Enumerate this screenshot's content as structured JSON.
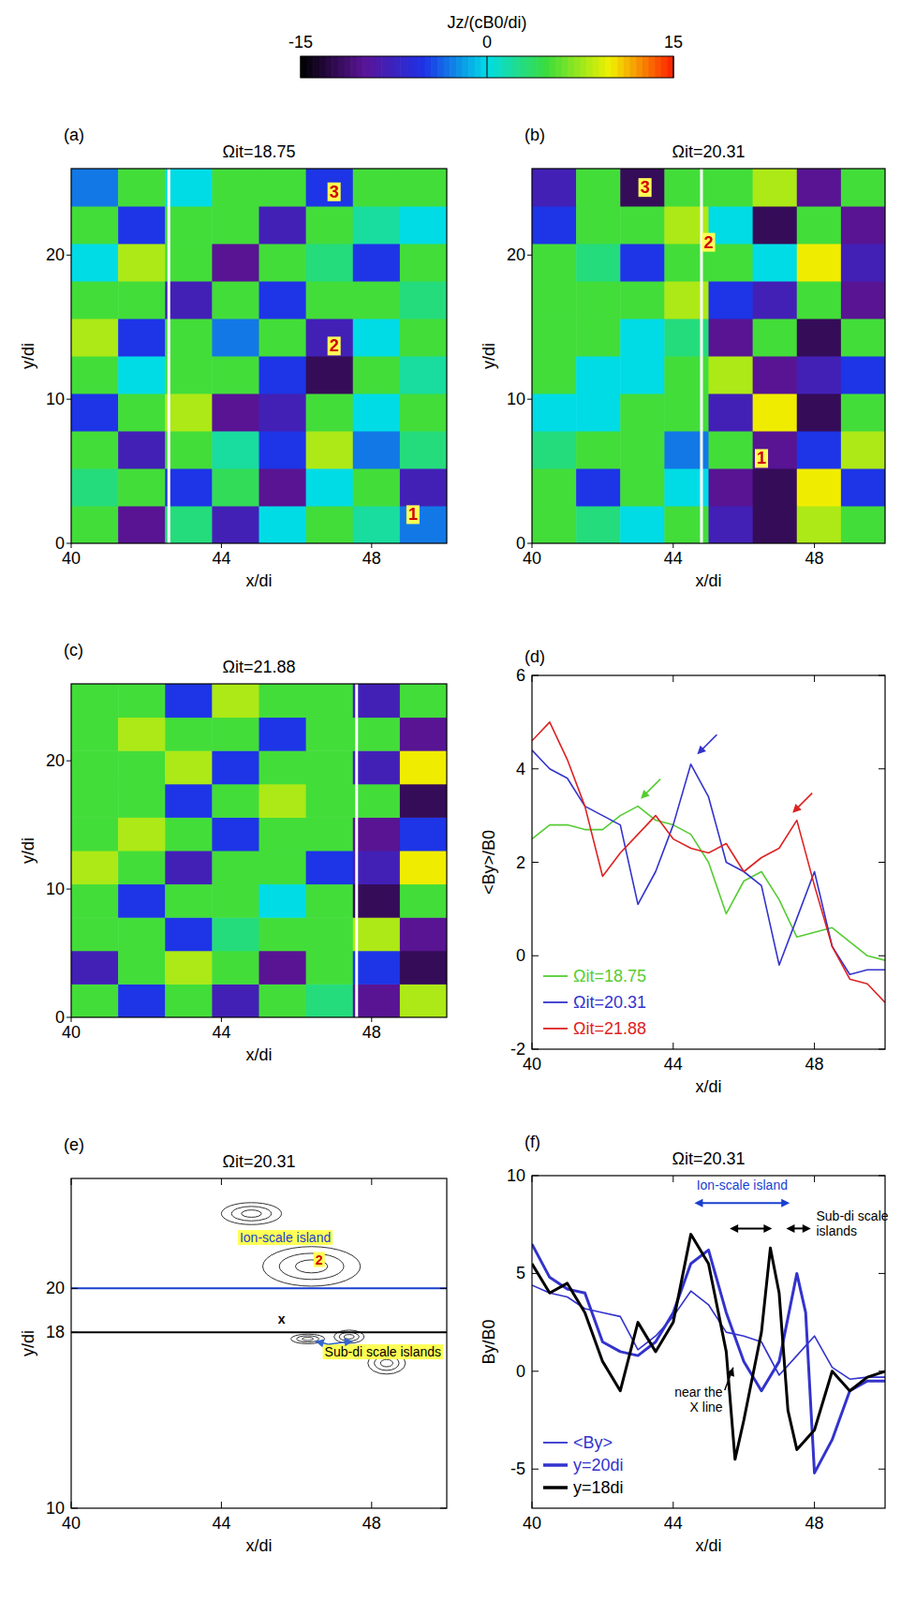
{
  "chart_data": [
    {
      "type": "heatmap",
      "panel_label": "(a)",
      "title": "Ωit=18.75",
      "xlabel": "x/di",
      "ylabel": "y/di",
      "xlim": [
        40,
        50
      ],
      "ylim": [
        0,
        26
      ],
      "xticks": [
        40,
        44,
        48
      ],
      "yticks": [
        0,
        10,
        20
      ],
      "colorbar": {
        "title": "Jz/(cB0/di)",
        "range": [
          -15,
          15
        ],
        "ticks": [
          -15,
          0,
          15
        ]
      },
      "line_x": 42.6,
      "x": [
        40.625,
        41.875,
        43.125,
        44.375,
        45.625,
        46.875,
        48.125,
        49.375
      ],
      "y": [
        1.3,
        3.9,
        6.5,
        9.1,
        11.7,
        14.3,
        16.9,
        19.5,
        22.1,
        24.7
      ],
      "values": [
        [
          5,
          -10,
          3,
          -8,
          0,
          5,
          2,
          -3
        ],
        [
          3,
          5,
          -5,
          4,
          -10,
          0,
          5,
          -8
        ],
        [
          5,
          -8,
          5,
          2,
          -5,
          8,
          -3,
          3
        ],
        [
          -5,
          5,
          8,
          -10,
          -8,
          5,
          0,
          5
        ],
        [
          5,
          0,
          5,
          5,
          -5,
          -12,
          5,
          2
        ],
        [
          8,
          -5,
          5,
          -3,
          5,
          -8,
          0,
          5
        ],
        [
          5,
          5,
          -8,
          5,
          -5,
          5,
          5,
          3
        ],
        [
          0,
          8,
          5,
          -10,
          5,
          3,
          -5,
          5
        ],
        [
          5,
          -5,
          5,
          5,
          -8,
          5,
          2,
          0
        ],
        [
          -3,
          5,
          0,
          5,
          5,
          -5,
          5,
          5
        ]
      ],
      "annotations": [
        {
          "text": "3",
          "x": 47,
          "y": 24,
          "color": "#d00000",
          "background": "#ffff55"
        },
        {
          "text": "2",
          "x": 47,
          "y": 13.3,
          "color": "#d00000",
          "background": "#ffff55"
        },
        {
          "text": "1",
          "x": 49.1,
          "y": 1.6,
          "color": "#d00000",
          "background": "#ffff55"
        }
      ]
    },
    {
      "type": "heatmap",
      "panel_label": "(b)",
      "title": "Ωit=20.31",
      "xlabel": "x/di",
      "ylabel": "y/di",
      "xlim": [
        40,
        50
      ],
      "ylim": [
        0,
        26
      ],
      "xticks": [
        40,
        44,
        48
      ],
      "yticks": [
        0,
        10,
        20
      ],
      "line_x": 44.8,
      "x": [
        40.625,
        41.875,
        43.125,
        44.375,
        45.625,
        46.875,
        48.125,
        49.375
      ],
      "y": [
        1.3,
        3.9,
        6.5,
        9.1,
        11.7,
        14.3,
        16.9,
        19.5,
        22.1,
        24.7
      ],
      "values": [
        [
          5,
          3,
          0,
          5,
          -8,
          -12,
          8,
          5
        ],
        [
          5,
          -5,
          5,
          0,
          -10,
          -12,
          10,
          -5
        ],
        [
          3,
          5,
          5,
          -3,
          5,
          -10,
          -5,
          8
        ],
        [
          0,
          0,
          5,
          5,
          -8,
          10,
          -12,
          5
        ],
        [
          5,
          0,
          0,
          5,
          8,
          -10,
          -8,
          -5
        ],
        [
          5,
          5,
          0,
          3,
          -10,
          5,
          -12,
          5
        ],
        [
          5,
          5,
          5,
          8,
          -5,
          -8,
          5,
          -10
        ],
        [
          5,
          3,
          -5,
          5,
          5,
          0,
          10,
          -8
        ],
        [
          -5,
          5,
          5,
          8,
          0,
          -12,
          5,
          -10
        ],
        [
          -8,
          5,
          -12,
          5,
          5,
          8,
          -10,
          5
        ]
      ],
      "annotations": [
        {
          "text": "3",
          "x": 43.2,
          "y": 24.3,
          "color": "#d00000",
          "background": "#ffff55"
        },
        {
          "text": "2",
          "x": 45,
          "y": 20.5,
          "color": "#d00000",
          "background": "#ffff55"
        },
        {
          "text": "1",
          "x": 46.5,
          "y": 5.5,
          "color": "#d00000",
          "background": "#ffff55"
        }
      ]
    },
    {
      "type": "heatmap",
      "panel_label": "(c)",
      "title": "Ωit=21.88",
      "xlabel": "x/di",
      "ylabel": "y/di",
      "xlim": [
        40,
        50
      ],
      "ylim": [
        0,
        26
      ],
      "xticks": [
        40,
        44,
        48
      ],
      "yticks": [
        0,
        10,
        20
      ],
      "line_x": 47.6,
      "x": [
        40.625,
        41.875,
        43.125,
        44.375,
        45.625,
        46.875,
        48.125,
        49.375
      ],
      "y": [
        1.3,
        3.9,
        6.5,
        9.1,
        11.7,
        14.3,
        16.9,
        19.5,
        22.1,
        24.7
      ],
      "values": [
        [
          5,
          -5,
          5,
          -8,
          5,
          3,
          -10,
          8
        ],
        [
          -8,
          5,
          8,
          5,
          -10,
          5,
          -5,
          -12
        ],
        [
          5,
          5,
          -5,
          3,
          5,
          5,
          8,
          -10
        ],
        [
          5,
          -5,
          5,
          5,
          0,
          5,
          -12,
          5
        ],
        [
          8,
          5,
          -8,
          5,
          5,
          -5,
          -8,
          10
        ],
        [
          5,
          8,
          5,
          -5,
          5,
          5,
          -10,
          -5
        ],
        [
          5,
          5,
          -5,
          5,
          8,
          5,
          5,
          -12
        ],
        [
          5,
          5,
          8,
          -5,
          5,
          5,
          -8,
          10
        ],
        [
          5,
          8,
          5,
          5,
          -5,
          5,
          5,
          -10
        ],
        [
          5,
          5,
          -5,
          8,
          5,
          5,
          -8,
          5
        ]
      ]
    },
    {
      "type": "line",
      "panel_label": "(d)",
      "xlabel": "x/di",
      "ylabel": "<By>/B0",
      "xlim": [
        40,
        50
      ],
      "ylim": [
        -2,
        6
      ],
      "xticks": [
        40,
        44,
        48
      ],
      "yticks": [
        -2,
        0,
        2,
        4,
        6
      ],
      "legend": "lower left",
      "series": [
        {
          "name": "Ωit=18.75",
          "color": "#55cc33",
          "line_style": "solid",
          "x": [
            40,
            40.5,
            41,
            41.5,
            42,
            42.5,
            43,
            43.5,
            44,
            44.5,
            45,
            45.5,
            46,
            46.5,
            47,
            47.5,
            48,
            48.5,
            49,
            49.5,
            50
          ],
          "values": [
            2.5,
            2.8,
            2.8,
            2.7,
            2.7,
            3.0,
            3.2,
            2.9,
            2.8,
            2.6,
            2.0,
            0.9,
            1.6,
            1.8,
            1.2,
            0.4,
            0.5,
            0.6,
            0.3,
            0.0,
            -0.1
          ]
        },
        {
          "name": "Ωit=20.31",
          "color": "#3333cc",
          "line_style": "solid",
          "x": [
            40,
            40.5,
            41,
            41.5,
            42,
            42.5,
            43,
            43.5,
            44,
            44.5,
            45,
            45.5,
            46,
            46.5,
            47,
            47.5,
            48,
            48.5,
            49,
            49.5,
            50
          ],
          "values": [
            4.4,
            4.0,
            3.8,
            3.2,
            3.0,
            2.8,
            1.1,
            1.8,
            2.8,
            4.1,
            3.4,
            2.0,
            1.8,
            1.5,
            -0.2,
            0.8,
            1.8,
            0.2,
            -0.4,
            -0.3,
            -0.3
          ]
        },
        {
          "name": "Ωit=21.88",
          "color": "#dd2222",
          "line_style": "solid",
          "x": [
            40,
            40.5,
            41,
            41.5,
            42,
            42.5,
            43,
            43.5,
            44,
            44.5,
            45,
            45.5,
            46,
            46.5,
            47,
            47.5,
            48,
            48.5,
            49,
            49.5,
            50
          ],
          "values": [
            4.6,
            5.0,
            4.2,
            3.2,
            1.7,
            2.2,
            2.6,
            3.0,
            2.5,
            2.3,
            2.2,
            2.4,
            1.8,
            2.1,
            2.3,
            2.9,
            1.5,
            0.2,
            -0.5,
            -0.6,
            -1.0
          ]
        }
      ],
      "arrows": [
        {
          "x": 43,
          "y": 3.3,
          "color": "#55cc33"
        },
        {
          "x": 44.6,
          "y": 4.25,
          "color": "#3333cc"
        },
        {
          "x": 47.3,
          "y": 3.0,
          "color": "#dd2222"
        }
      ]
    },
    {
      "type": "contour",
      "panel_label": "(e)",
      "title": "Ωit=20.31",
      "xlabel": "x/di",
      "ylabel": "y/di",
      "xlim": [
        40,
        50
      ],
      "ylim": [
        10,
        25
      ],
      "xticks": [
        40,
        44,
        48
      ],
      "yticks": [
        10,
        18,
        20
      ],
      "islands": [
        {
          "cx": 46.4,
          "cy": 21.0,
          "rx": 1.3,
          "ry": 0.9
        },
        {
          "cx": 44.8,
          "cy": 23.4,
          "rx": 0.8,
          "ry": 0.5
        },
        {
          "cx": 46.3,
          "cy": 17.7,
          "rx": 0.45,
          "ry": 0.22
        },
        {
          "cx": 47.4,
          "cy": 17.8,
          "rx": 0.4,
          "ry": 0.3
        },
        {
          "cx": 48.4,
          "cy": 16.6,
          "rx": 0.5,
          "ry": 0.5
        }
      ],
      "lines": [
        {
          "y": 20,
          "color": "#1a3fd0"
        },
        {
          "y": 18,
          "color": "#000000"
        }
      ],
      "annotations": [
        {
          "text": "Ion-scale island",
          "x": 45.7,
          "y": 22.1,
          "color": "#1a3fd0",
          "background": "#ffff55"
        },
        {
          "text": "2",
          "x": 46.6,
          "y": 21.1,
          "color": "#d00000",
          "background": "#ffff55"
        },
        {
          "text": "x",
          "x": 45.6,
          "y": 18.4,
          "color": "#000000"
        },
        {
          "text": "Sub-di scale islands",
          "x": 48.3,
          "y": 16.9,
          "color": "#000000",
          "background": "#ffff55",
          "arrows_to": [
            [
              46.5,
              17.6
            ],
            [
              47.5,
              17.6
            ]
          ]
        }
      ]
    },
    {
      "type": "line",
      "panel_label": "(f)",
      "title": "Ωit=20.31",
      "xlabel": "x/di",
      "ylabel": "By/B0",
      "xlim": [
        40,
        50
      ],
      "ylim": [
        -7,
        10
      ],
      "xticks": [
        40,
        44,
        48
      ],
      "yticks": [
        -5,
        0,
        5,
        10
      ],
      "legend": "lower left",
      "series": [
        {
          "name": "<By>",
          "color": "#3333cc",
          "line_style": "solid",
          "x": [
            40,
            40.5,
            41,
            41.5,
            42,
            42.5,
            43,
            43.5,
            44,
            44.5,
            45,
            45.5,
            46,
            46.5,
            47,
            47.5,
            48,
            48.5,
            49,
            49.5,
            50
          ],
          "values": [
            4.4,
            4.0,
            3.8,
            3.2,
            3.0,
            2.8,
            1.1,
            1.8,
            2.8,
            4.1,
            3.4,
            2.0,
            1.8,
            1.5,
            -0.2,
            0.8,
            1.8,
            0.2,
            -0.4,
            -0.3,
            -0.3
          ]
        },
        {
          "name": "y=20di",
          "color": "#3333cc",
          "line_style": "thick",
          "x": [
            40,
            40.5,
            41,
            41.5,
            42,
            42.5,
            43,
            43.5,
            44,
            44.5,
            45,
            45.5,
            46,
            46.5,
            47,
            47.5,
            47.75,
            48,
            48.5,
            49,
            49.5,
            50
          ],
          "values": [
            6.5,
            4.8,
            4.2,
            4.0,
            1.5,
            1.0,
            0.8,
            1.5,
            3.0,
            5.5,
            6.2,
            3.0,
            0.5,
            -1.0,
            0.5,
            5.0,
            3.0,
            -5.2,
            -3.5,
            -1.0,
            -0.5,
            -0.5
          ]
        },
        {
          "name": "y=18di",
          "color": "#000000",
          "line_style": "thick",
          "x": [
            40,
            40.5,
            41,
            41.5,
            42,
            42.5,
            43,
            43.5,
            44,
            44.5,
            45,
            45.5,
            45.75,
            46,
            46.5,
            46.75,
            47,
            47.25,
            47.5,
            48,
            48.5,
            49,
            49.5,
            50
          ],
          "values": [
            5.5,
            4.0,
            4.5,
            3.0,
            0.5,
            -1.0,
            2.5,
            1.0,
            2.5,
            7.0,
            5.5,
            1.0,
            -4.5,
            -2.5,
            2.0,
            6.3,
            4.0,
            -2.0,
            -4.0,
            -3.0,
            0.0,
            -1.0,
            -0.3,
            0.0
          ]
        }
      ],
      "spans": [
        {
          "from": 44.6,
          "to": 47.3,
          "y": 8.6,
          "color": "#1a3fd0"
        },
        {
          "from": 45.6,
          "to": 46.8,
          "y": 7.3,
          "color": "#000000"
        },
        {
          "from": 47.2,
          "to": 47.9,
          "y": 7.3,
          "color": "#000000"
        }
      ],
      "annotations": [
        {
          "text": "Ion-scale island",
          "x": 45.95,
          "y": 9.3,
          "color": "#1a3fd0"
        },
        {
          "text": "Sub-di scale islands",
          "x": 48.05,
          "y": 7.7,
          "color": "#000000"
        },
        {
          "text": "near the X line",
          "x": 45.4,
          "y": -1.3,
          "color": "#000000",
          "arrows_to": [
            [
              45.7,
              0.2
            ]
          ]
        }
      ]
    }
  ]
}
